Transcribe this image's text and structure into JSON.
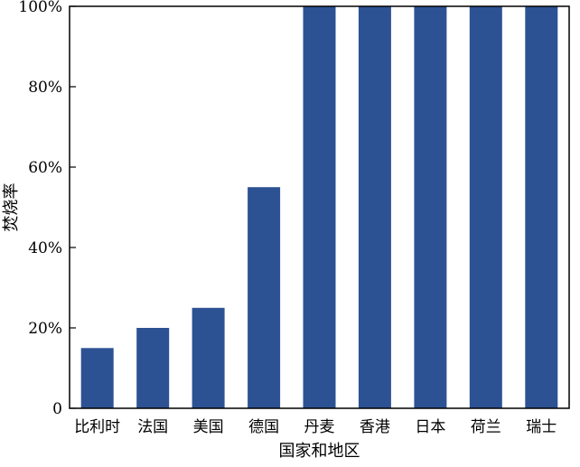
{
  "chart_data": {
    "type": "bar",
    "title": "",
    "xlabel": "国家和地区",
    "ylabel": "焚烧率",
    "categories": [
      "比利时",
      "法国",
      "美国",
      "德国",
      "丹麦",
      "香港",
      "日本",
      "荷兰",
      "瑞士"
    ],
    "values": [
      15,
      20,
      25,
      55,
      100,
      100,
      100,
      100,
      100
    ],
    "ylim": [
      0,
      100
    ],
    "yticks": [
      0,
      20,
      40,
      60,
      80,
      100
    ],
    "ytick_labels": [
      "0",
      "20%",
      "40%",
      "60%",
      "80%",
      "100%"
    ],
    "bar_color": "#2d5293",
    "grid": false,
    "legend": "none"
  }
}
